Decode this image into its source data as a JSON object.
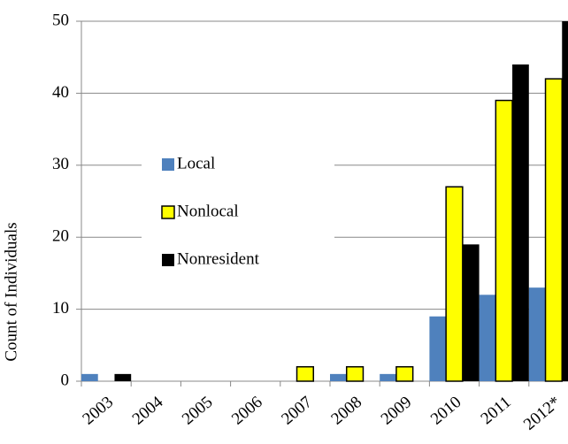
{
  "chart_data": {
    "type": "bar",
    "y_label": "Count of Individuals",
    "categories": [
      "2003",
      "2004",
      "2005",
      "2006",
      "2007",
      "2008",
      "2009",
      "2010",
      "2011",
      "2012*"
    ],
    "series": [
      {
        "name": "Local",
        "color": "#4f81bd",
        "values": [
          1,
          0,
          0,
          0,
          0,
          1,
          1,
          9,
          12,
          13
        ]
      },
      {
        "name": "Nonlocal",
        "color": "#ffff00",
        "values": [
          0,
          0,
          0,
          0,
          2,
          2,
          2,
          27,
          39,
          42
        ]
      },
      {
        "name": "Nonresident",
        "color": "#000000",
        "values": [
          1,
          0,
          0,
          0,
          0,
          0,
          0,
          19,
          44,
          50
        ]
      }
    ],
    "ylim": [
      0,
      50
    ],
    "yticks": [
      0,
      10,
      20,
      30,
      40,
      50
    ],
    "grid": true,
    "legend": "left"
  }
}
